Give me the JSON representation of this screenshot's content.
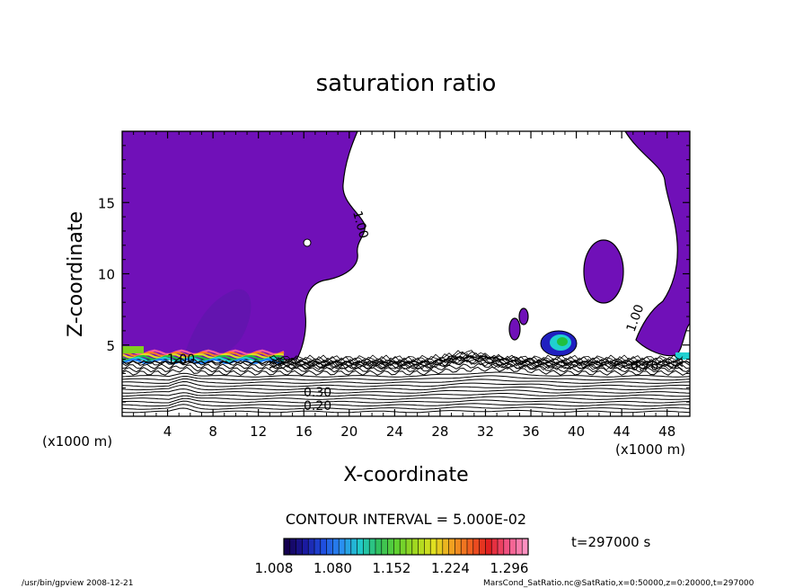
{
  "chart_data": {
    "type": "heatmap",
    "title": "saturation ratio",
    "xlabel": "X-coordinate",
    "ylabel": "Z-coordinate",
    "x_unit": "(x1000 m)",
    "z_unit": "(x1000 m)",
    "xlim": [
      0,
      50
    ],
    "ylim": [
      0,
      20
    ],
    "x_ticks": [
      "4",
      "8",
      "12",
      "16",
      "20",
      "24",
      "28",
      "32",
      "36",
      "40",
      "44",
      "48"
    ],
    "y_ticks": [
      "5",
      "10",
      "15"
    ],
    "contour_interval": "CONTOUR INTERVAL = 5.000E-02",
    "contour_labels": [
      "1.00",
      "1.00",
      "1.00",
      "0.20",
      "0.30",
      "0.70"
    ],
    "colorbar": {
      "tick_labels": [
        "1.008",
        "1.080",
        "1.152",
        "1.224",
        "1.296"
      ],
      "range": [
        1.008,
        1.296
      ],
      "colors": [
        "#1a0066",
        "#2020c0",
        "#2080ff",
        "#20d0d0",
        "#20c040",
        "#80d020",
        "#e0e020",
        "#ff8020",
        "#e02020",
        "#ff60a0"
      ]
    },
    "saturated_color": "#7010b8",
    "time_label": "t=297000 s",
    "footer_left": "/usr/bin/gpview   2008-12-21",
    "footer_right": "MarsCond_SatRatio.nc@SatRatio,x=0:50000,z=0:20000,t=297000"
  }
}
